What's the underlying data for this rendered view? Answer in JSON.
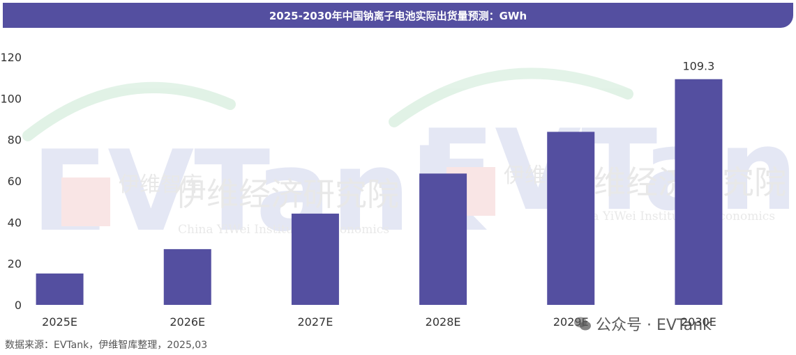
{
  "chart_data": {
    "type": "bar",
    "title": "2025-2030年中国钠离子电池实际出货量预测：GWh",
    "categories": [
      "2025E",
      "2026E",
      "2027E",
      "2028E",
      "2029E",
      "2030E"
    ],
    "values": [
      15.2,
      27.0,
      44.2,
      63.6,
      83.8,
      109.3
    ],
    "data_labels": {
      "2030E": "109.3"
    },
    "ylim": [
      0,
      120
    ],
    "yticks": [
      "0",
      "20",
      "40",
      "60",
      "80",
      "100",
      "120"
    ],
    "xlabel": "",
    "ylabel": "",
    "bar_color": "#544fa0",
    "grid": false,
    "legend": "none"
  },
  "source": "数据来源：EVTank，伊维智库整理，2025,03",
  "watermarks": {
    "brand": "EVTank",
    "cn_name": "伊维经济研究院",
    "short_name": "伊维智库",
    "en_name": "China YiWei Institute of Economics",
    "wechat": "公众号 · EVTank"
  },
  "colors": {
    "title_bg": "#544fa0",
    "bar": "#544fa0"
  }
}
